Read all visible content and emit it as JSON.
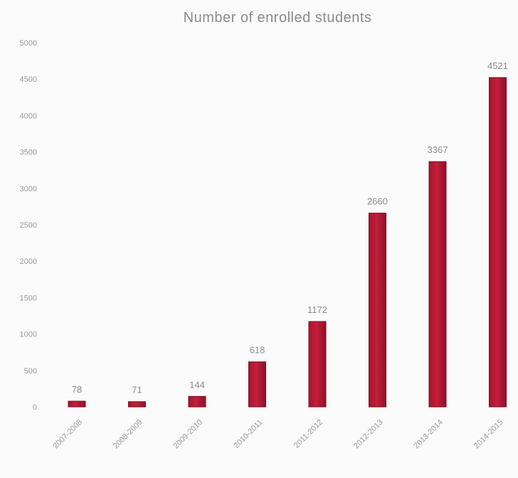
{
  "chart_data": {
    "type": "bar",
    "title": "Number of enrolled students",
    "xlabel": "",
    "ylabel": "",
    "ylim": [
      0,
      5000
    ],
    "yticks": [
      "0",
      "500",
      "1000",
      "1500",
      "2000",
      "2500",
      "3000",
      "3500",
      "4000",
      "4500",
      "5000"
    ],
    "categories": [
      "2007-2008",
      "2008-2009",
      "2009-2010",
      "2010-2011",
      "2011-2012",
      "2012-2013",
      "2013-2014",
      "2014-2015"
    ],
    "values": [
      78,
      71,
      144,
      618,
      1172,
      2660,
      3367,
      4521
    ],
    "data_labels": [
      "78",
      "71",
      "144",
      "618",
      "1172",
      "2660",
      "3367",
      "4521"
    ],
    "grid": false,
    "legend": "none",
    "bar_color": "#c41e3a"
  }
}
